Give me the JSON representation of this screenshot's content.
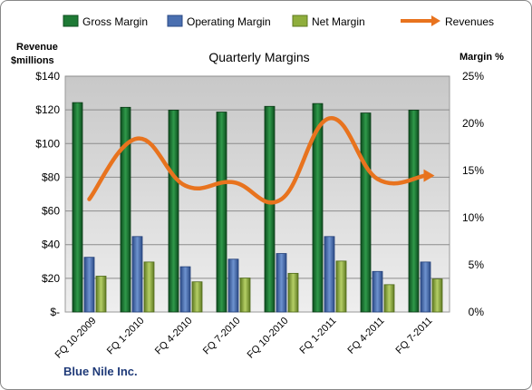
{
  "chart_data": {
    "type": "bar",
    "title": "Quarterly Margins",
    "company": "Blue Nile Inc.",
    "y_left_label_line1": "Revenue",
    "y_left_label_line2": "$millions",
    "y_right_label": "Margin %",
    "categories": [
      "FQ 10-2009",
      "FQ 1-2010",
      "FQ 4-2010",
      "FQ 7-2010",
      "FQ 10-2010",
      "FQ 1-2011",
      "FQ 4-2011",
      "FQ 7-2011"
    ],
    "series": [
      {
        "name": "Gross Margin",
        "type": "bar",
        "axis": "right",
        "color": "#1e7a35",
        "values": [
          22.2,
          21.7,
          21.4,
          21.2,
          21.8,
          22.1,
          21.1,
          21.4
        ]
      },
      {
        "name": "Operating Margin",
        "type": "bar",
        "axis": "right",
        "color": "#4a6fb0",
        "values": [
          5.8,
          8.0,
          4.8,
          5.6,
          6.2,
          8.0,
          4.3,
          5.3
        ]
      },
      {
        "name": "Net Margin",
        "type": "bar",
        "axis": "right",
        "color": "#8fae3c",
        "values": [
          3.8,
          5.3,
          3.2,
          3.6,
          4.1,
          5.4,
          2.9,
          3.5
        ]
      },
      {
        "name": "Revenues",
        "type": "line",
        "axis": "left",
        "color": "#e8731e",
        "values": [
          67,
          103,
          75,
          77,
          67,
          115,
          79,
          81
        ]
      }
    ],
    "y_left_ticks": [
      "$-",
      "$20",
      "$40",
      "$60",
      "$80",
      "$100",
      "$120",
      "$140"
    ],
    "y_right_ticks": [
      "0%",
      "5%",
      "10%",
      "15%",
      "20%",
      "25%"
    ],
    "ylim_left": [
      0,
      140
    ],
    "ylim_right": [
      0,
      25
    ],
    "legend_position": "top",
    "grid": true
  }
}
